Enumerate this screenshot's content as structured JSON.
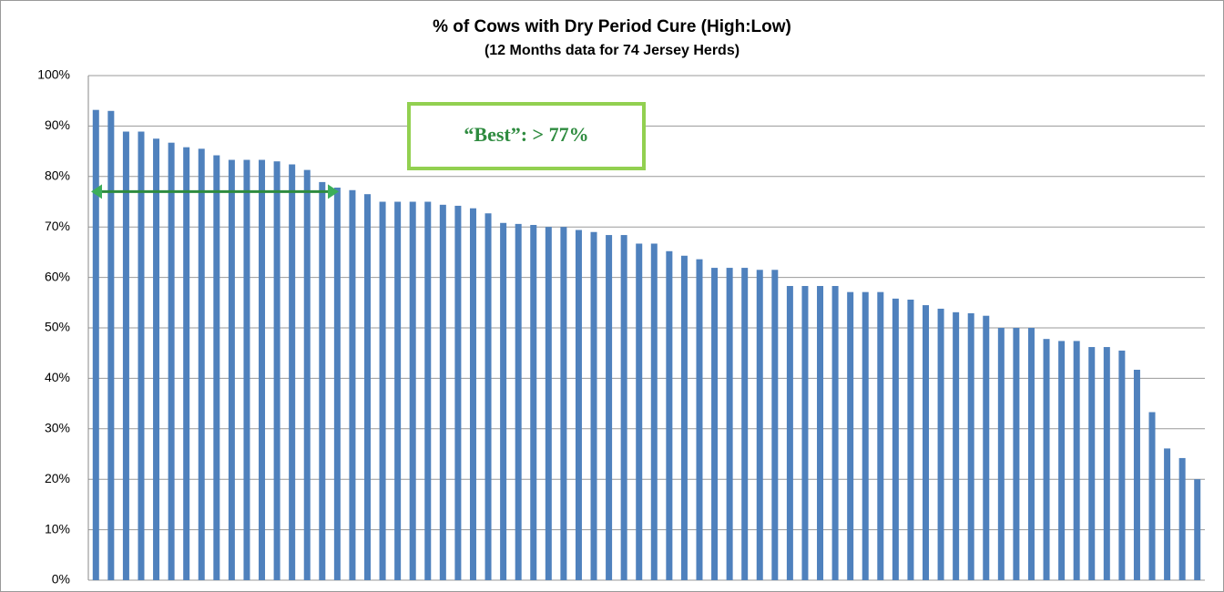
{
  "chart_data": {
    "type": "bar",
    "title": "% of Cows with Dry Period Cure (High:Low)",
    "subtitle": "(12 Months data for  74 Jersey  Herds)",
    "categories": [
      null,
      null,
      null,
      null,
      null,
      null,
      null,
      null,
      null,
      null,
      null,
      null,
      null,
      null,
      null,
      null,
      null,
      null,
      null,
      null,
      null,
      null,
      null,
      null,
      null,
      null,
      null,
      null,
      null,
      null,
      null,
      null,
      null,
      null,
      null,
      null,
      null,
      null,
      null,
      null,
      null,
      null,
      null,
      null,
      null,
      null,
      null,
      null,
      null,
      null,
      null,
      null,
      null,
      null,
      null,
      null,
      null,
      null,
      null,
      null,
      null,
      null,
      null,
      null,
      null,
      null,
      null,
      null,
      null,
      null,
      null,
      null,
      null,
      null
    ],
    "values": [
      93.2,
      93,
      88.9,
      88.9,
      87.5,
      86.7,
      85.8,
      85.5,
      84.2,
      83.3,
      83.3,
      83.3,
      83,
      82.4,
      81.3,
      78.9,
      77.8,
      77.3,
      76.5,
      75,
      75,
      75,
      75,
      74.4,
      74.2,
      73.7,
      72.7,
      70.8,
      70.6,
      70.4,
      70,
      70,
      69.4,
      69,
      68.4,
      68.4,
      66.7,
      66.7,
      65.2,
      64.3,
      63.6,
      61.9,
      61.9,
      61.9,
      61.5,
      61.5,
      58.3,
      58.3,
      58.3,
      58.3,
      57.1,
      57.1,
      57.1,
      55.8,
      55.6,
      54.5,
      53.8,
      53.1,
      52.9,
      52.4,
      50,
      50,
      50,
      47.8,
      47.4,
      47.4,
      46.2,
      46.2,
      45.5,
      41.7,
      33.3,
      26.1,
      24.2,
      20
    ],
    "color": "#4f81bd",
    "ylim": [
      0,
      100
    ],
    "yticks": [
      {
        "value": 0,
        "label": "0%"
      },
      {
        "value": 10,
        "label": "10%"
      },
      {
        "value": 20,
        "label": "20%"
      },
      {
        "value": 30,
        "label": "30%"
      },
      {
        "value": 40,
        "label": "40%"
      },
      {
        "value": 50,
        "label": "50%"
      },
      {
        "value": 60,
        "label": "60%"
      },
      {
        "value": 70,
        "label": "70%"
      },
      {
        "value": 80,
        "label": "80%"
      },
      {
        "value": 90,
        "label": "90%"
      },
      {
        "value": 100,
        "label": "100%"
      }
    ],
    "grid": true,
    "annotation": {
      "text": "“Best”:  > 77%",
      "value": 77
    }
  }
}
